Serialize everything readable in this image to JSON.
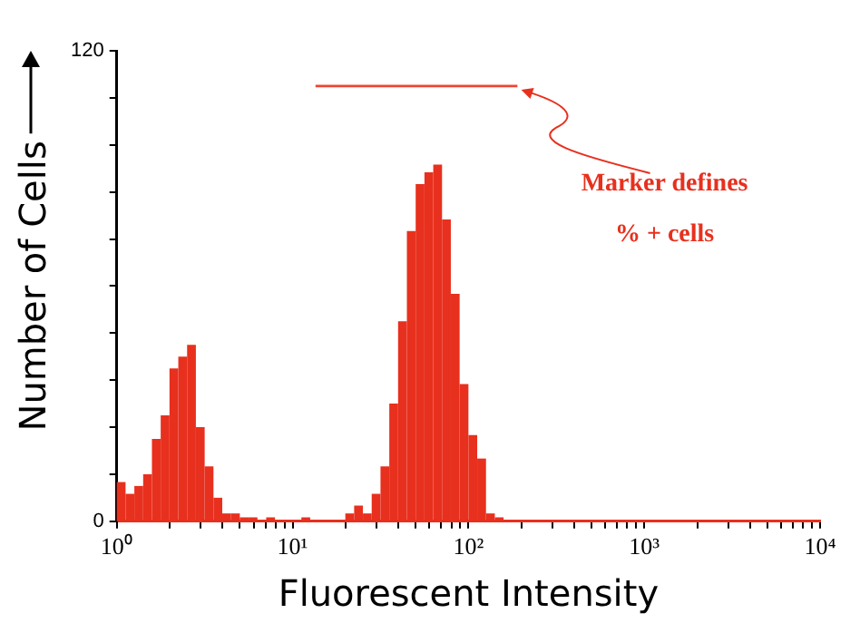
{
  "chart_data": {
    "type": "histogram",
    "xlabel": "Fluorescent Intensity",
    "ylabel": "Number of Cells",
    "bins": [
      1,
      1.122,
      1.259,
      1.413,
      1.585,
      1.778,
      1.995,
      2.239,
      2.512,
      2.818,
      3.162,
      3.548,
      3.981,
      4.467,
      5.012,
      5.623,
      6.31,
      7.079,
      7.943,
      8.913,
      10,
      11.22,
      12.59,
      14.13,
      15.85,
      17.78,
      19.95,
      22.39,
      25.12,
      28.18,
      31.62,
      35.48,
      39.81,
      44.67,
      50.12,
      56.23,
      63.1,
      70.79,
      79.43,
      89.13,
      100,
      112.2,
      125.9,
      141.3,
      158.5
    ],
    "values": [
      10,
      7,
      9,
      12,
      21,
      27,
      39,
      42,
      45,
      24,
      14,
      6,
      2,
      2,
      1,
      1,
      0,
      1,
      0,
      0,
      0,
      1,
      0,
      0,
      0,
      0,
      2,
      4,
      2,
      7,
      14,
      30,
      51,
      74,
      86,
      89,
      91,
      77,
      58,
      35,
      22,
      16,
      2,
      1
    ],
    "color": "#e8301e",
    "log": "x",
    "xlim": [
      1,
      10000
    ],
    "xticks": [
      {
        "value": 1,
        "label": "10⁰"
      },
      {
        "value": 2,
        "label": null
      },
      {
        "value": 3,
        "label": null
      },
      {
        "value": 4,
        "label": null
      },
      {
        "value": 5,
        "label": null
      },
      {
        "value": 6,
        "label": null
      },
      {
        "value": 7,
        "label": null
      },
      {
        "value": 8,
        "label": null
      },
      {
        "value": 9,
        "label": null
      },
      {
        "value": 10,
        "label": "10¹"
      },
      {
        "value": 20,
        "label": null
      },
      {
        "value": 30,
        "label": null
      },
      {
        "value": 40,
        "label": null
      },
      {
        "value": 50,
        "label": null
      },
      {
        "value": 60,
        "label": null
      },
      {
        "value": 70,
        "label": null
      },
      {
        "value": 80,
        "label": null
      },
      {
        "value": 90,
        "label": null
      },
      {
        "value": 100,
        "label": "10²"
      },
      {
        "value": 200,
        "label": null
      },
      {
        "value": 300,
        "label": null
      },
      {
        "value": 400,
        "label": null
      },
      {
        "value": 500,
        "label": null
      },
      {
        "value": 600,
        "label": null
      },
      {
        "value": 700,
        "label": null
      },
      {
        "value": 800,
        "label": null
      },
      {
        "value": 900,
        "label": null
      },
      {
        "value": 1000,
        "label": "10³"
      },
      {
        "value": 2000,
        "label": null
      },
      {
        "value": 3000,
        "label": null
      },
      {
        "value": 4000,
        "label": null
      },
      {
        "value": 5000,
        "label": null
      },
      {
        "value": 6000,
        "label": null
      },
      {
        "value": 7000,
        "label": null
      },
      {
        "value": 8000,
        "label": null
      },
      {
        "value": 9000,
        "label": null
      },
      {
        "value": 10000,
        "label": "10⁴"
      }
    ],
    "ylim": [
      0,
      120
    ],
    "yticks": [
      0,
      {
        "value": 12,
        "label": null
      },
      {
        "value": 24,
        "label": null
      },
      {
        "value": 36,
        "label": null
      },
      {
        "value": 48,
        "label": null
      },
      {
        "value": 60,
        "label": null
      },
      {
        "value": 72,
        "label": null
      },
      {
        "value": 84,
        "label": null
      },
      {
        "value": 96,
        "label": null
      },
      {
        "value": 108,
        "label": null
      },
      120
    ],
    "series": [
      {
        "type": "line",
        "x": [
          13.5,
          190
        ],
        "values": [
          111,
          111
        ],
        "color": "#ee4433"
      }
    ],
    "marker": "none",
    "annotations": [
      {
        "text": "Marker defines % + cells",
        "x": 195,
        "y": 111
      }
    ]
  }
}
